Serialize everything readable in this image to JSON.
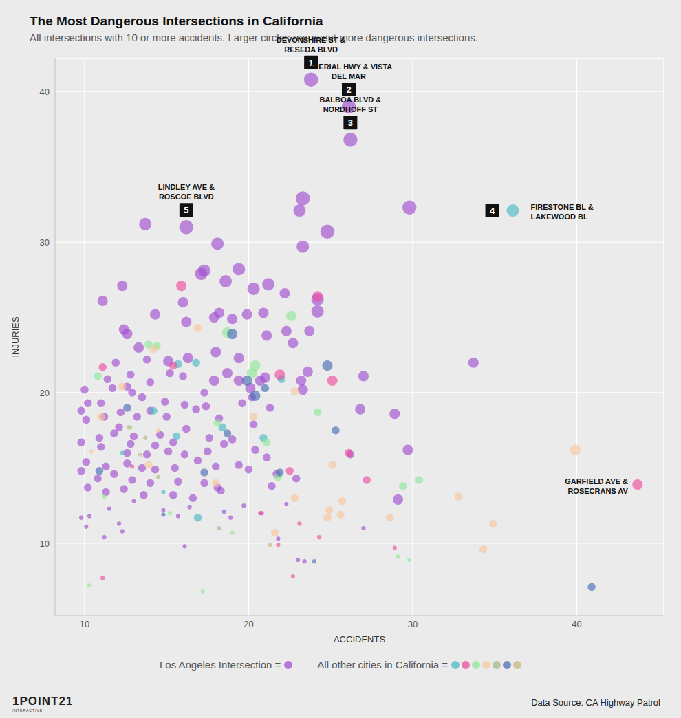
{
  "chart_data": {
    "type": "scatter",
    "title": "The Most Dangerous Intersections in California",
    "subtitle": "All intersections with 10 or more accidents. Larger circles represent more dangerous intersections.",
    "x_label": "ACCIDENTS",
    "y_label": "INJURIES",
    "xlim": [
      8.2,
      45.3
    ],
    "ylim": [
      5.2,
      42.2
    ],
    "xticks": [
      10,
      20,
      30,
      40
    ],
    "yticks": [
      10,
      20,
      30,
      40
    ],
    "grid": true,
    "legend": "bottom",
    "series": [
      {
        "name": "Los Angeles Intersection =",
        "color": "#a24fd0",
        "x": [
          23.8,
          26.1,
          26.2,
          16.2,
          13.7,
          23.3,
          23.1,
          29.8,
          24.8,
          23.3,
          18.1,
          17.3,
          17.1,
          19.4,
          18.6,
          12.3,
          11.1,
          16.0,
          20.3,
          21.2,
          22.2,
          24.2,
          24.2,
          20.9,
          18.2,
          17.9,
          19.0,
          19.9,
          14.3,
          16.2,
          12.4,
          12.6,
          22.3,
          23.7,
          21.1,
          22.7,
          13.3,
          18.0,
          19.4,
          15.1,
          16.3,
          11.9,
          13.8,
          33.7,
          23.6,
          27.0,
          21.0,
          19.4,
          20.7,
          23.2,
          18.7,
          17.9,
          20.1,
          23.3,
          15.2,
          16.0,
          14.0,
          12.8,
          11.4,
          12.6,
          11.7,
          10.0,
          12.9,
          13.5,
          14.9,
          16.1,
          17.4,
          17.3,
          19.6,
          20.2,
          21.3,
          10.2,
          11.0,
          9.8,
          12.2,
          13.2,
          14.0,
          15.0,
          16.8,
          18.2,
          20.3,
          26.8,
          28.9,
          10.1,
          11.2,
          12.1,
          13.0,
          14.6,
          16.2,
          17.6,
          19.0,
          10.9,
          11.8,
          12.8,
          14.3,
          15.4,
          9.8,
          11.0,
          12.6,
          13.8,
          15.1,
          16.1,
          17.5,
          18.5,
          20.4,
          21.1,
          26.2,
          29.7,
          10.1,
          11.3,
          12.6,
          13.5,
          14.3,
          15.5,
          16.9,
          18.0,
          19.4,
          20.0,
          22.9,
          9.8,
          10.8,
          11.8,
          12.9,
          14.0,
          15.7,
          17.3,
          18.1,
          21.7,
          10.2,
          11.3,
          12.4,
          13.6,
          15.4,
          16.6,
          18.3,
          29.1,
          11.5,
          13.0,
          14.8,
          16.4,
          18.5,
          20.8,
          10.3,
          12.1,
          9.8,
          10.1,
          15.7,
          18.9,
          21.8,
          27.0,
          11.2,
          12.3,
          16.1,
          23.0,
          23.4,
          22.3,
          21.4,
          19.7
        ],
        "y": [
          40.8,
          39.0,
          36.8,
          31.0,
          31.2,
          32.9,
          32.1,
          32.3,
          30.7,
          29.7,
          29.9,
          28.1,
          27.9,
          28.2,
          27.4,
          27.1,
          26.1,
          26.0,
          26.9,
          27.2,
          26.6,
          26.2,
          25.4,
          25.3,
          25.3,
          25.0,
          24.9,
          25.2,
          25.2,
          24.7,
          24.2,
          23.9,
          24.1,
          24.1,
          23.8,
          23.3,
          23.0,
          22.7,
          22.3,
          22.1,
          22.3,
          22.0,
          22.2,
          22.0,
          21.4,
          21.1,
          21.0,
          20.8,
          20.8,
          20.8,
          21.3,
          20.8,
          20.3,
          20.2,
          21.3,
          21.1,
          20.7,
          21.2,
          20.9,
          20.4,
          20.3,
          20.2,
          20.0,
          19.7,
          19.4,
          19.2,
          19.1,
          20.0,
          19.3,
          19.7,
          19.0,
          19.3,
          19.3,
          18.8,
          18.7,
          18.4,
          18.8,
          18.4,
          18.9,
          18.3,
          17.9,
          18.9,
          18.6,
          18.2,
          18.4,
          17.7,
          17.1,
          17.2,
          17.6,
          17.0,
          16.9,
          17.0,
          17.3,
          16.6,
          16.5,
          16.7,
          16.7,
          16.4,
          16.0,
          15.9,
          16.1,
          15.9,
          16.1,
          16.6,
          16.2,
          15.7,
          15.9,
          16.2,
          15.4,
          15.1,
          15.3,
          15.0,
          14.9,
          15.0,
          15.5,
          15.1,
          15.2,
          14.9,
          14.3,
          14.8,
          14.3,
          14.6,
          14.2,
          14.0,
          14.1,
          14.0,
          13.7,
          14.6,
          13.7,
          13.4,
          13.6,
          13.2,
          13.2,
          13.0,
          13.5,
          12.9,
          12.3,
          12.8,
          12.2,
          12.4,
          12.1,
          12.0,
          11.8,
          11.3,
          11.7,
          11.1,
          11.8,
          11.7,
          10.3,
          11.0,
          10.4,
          10.8,
          9.8,
          8.9,
          8.8,
          12.6,
          13.8,
          12.5
        ],
        "size": [
          5,
          5,
          5,
          5,
          4,
          5,
          4,
          5,
          5,
          4,
          4,
          4,
          4,
          4,
          4,
          3,
          3,
          3,
          4,
          4,
          3,
          4,
          4,
          3,
          3,
          3,
          3,
          3,
          3,
          3,
          3,
          3,
          3,
          3,
          3,
          3,
          3,
          3,
          3,
          3,
          3,
          2,
          2,
          3,
          3,
          3,
          3,
          3,
          3,
          3,
          3,
          3,
          3,
          3,
          2,
          2,
          2,
          2,
          2,
          2,
          2,
          2,
          2,
          2,
          2,
          2,
          2,
          2,
          2,
          2,
          2,
          2,
          2,
          2,
          2,
          2,
          2,
          2,
          2,
          2,
          2,
          3,
          3,
          2,
          2,
          2,
          2,
          2,
          2,
          2,
          2,
          2,
          2,
          2,
          2,
          2,
          2,
          2,
          2,
          2,
          2,
          2,
          2,
          2,
          2,
          2,
          2,
          3,
          2,
          2,
          2,
          2,
          2,
          2,
          2,
          2,
          2,
          2,
          2,
          2,
          2,
          2,
          2,
          2,
          2,
          2,
          2,
          2,
          2,
          2,
          2,
          2,
          2,
          2,
          2,
          3,
          1,
          1,
          1,
          1,
          1,
          1,
          1,
          1,
          1,
          1,
          1,
          1,
          1,
          1,
          1,
          1,
          1,
          1,
          1,
          1,
          2,
          1
        ]
      },
      {
        "name": "All other cities in California =",
        "x": [
          36.1,
          16.8,
          22.0,
          15.7,
          18.4,
          16.9,
          14.2,
          15.6,
          12.3,
          14.8,
          20.9,
          43.7,
          15.9,
          24.2,
          25.1,
          21.9,
          27.2,
          22.5,
          11.1,
          11.1,
          22.7,
          23.1,
          24.3,
          20.7,
          26.1,
          21.8,
          12.9,
          15.4,
          28.9,
          18.7,
          20.2,
          20.4,
          14.4,
          13.9,
          22.6,
          24.2,
          21.8,
          29.4,
          30.4,
          17.2,
          10.3,
          10.8,
          18.1,
          12.8,
          11.2,
          19.0,
          29.1,
          29.8,
          21.1,
          15.2,
          39.9,
          34.9,
          34.3,
          32.8,
          28.6,
          25.7,
          25.6,
          24.9,
          24.8,
          25.1,
          22.8,
          21.6,
          22.8,
          16.9,
          14.2,
          12.3,
          11.0,
          10.4,
          13.9,
          18.0,
          20.3,
          14.5,
          13.7,
          18.2,
          14.5,
          40.9,
          19.0,
          24.8,
          19.9,
          20.4,
          21.0,
          25.3,
          18.7,
          12.6,
          10.9,
          21.9,
          24.0,
          14.8,
          17.3,
          12.7,
          21.3,
          13.4
        ],
        "y": [
          32.1,
          22.0,
          20.9,
          21.9,
          17.7,
          11.7,
          18.8,
          17.1,
          16.0,
          13.4,
          17.0,
          13.9,
          27.1,
          26.4,
          20.8,
          21.2,
          14.2,
          14.8,
          21.7,
          7.7,
          7.8,
          11.3,
          10.4,
          12.0,
          16.0,
          9.9,
          15.1,
          21.8,
          9.7,
          24.0,
          21.3,
          21.8,
          23.1,
          23.2,
          25.1,
          18.7,
          14.4,
          13.8,
          14.2,
          6.8,
          7.2,
          21.1,
          18.0,
          17.7,
          13.1,
          10.7,
          9.1,
          8.9,
          16.7,
          12.0,
          16.2,
          11.3,
          9.6,
          13.1,
          11.7,
          12.8,
          11.9,
          12.2,
          11.7,
          15.2,
          20.1,
          10.7,
          13.0,
          24.3,
          22.9,
          20.4,
          18.4,
          16.1,
          15.2,
          14.0,
          18.4,
          17.5,
          17.0,
          11.0,
          14.4,
          7.1,
          23.9,
          21.8,
          20.8,
          19.8,
          20.3,
          17.5,
          17.3,
          19.0,
          14.8,
          14.7,
          8.8,
          11.9,
          14.7,
          17.7,
          9.9,
          15.9
        ],
        "size": [
          4,
          2,
          2,
          2,
          2,
          2,
          2,
          2,
          1,
          1,
          2,
          3,
          3,
          3,
          3,
          3,
          2,
          2,
          2,
          1,
          1,
          1,
          1,
          1,
          2,
          1,
          1,
          2,
          1,
          3,
          3,
          3,
          2,
          2,
          3,
          2,
          2,
          2,
          2,
          1,
          1,
          2,
          2,
          1,
          1,
          1,
          1,
          1,
          2,
          1,
          3,
          2,
          2,
          2,
          2,
          2,
          2,
          2,
          2,
          2,
          2,
          2,
          2,
          2,
          2,
          2,
          2,
          1,
          2,
          2,
          2,
          1,
          1,
          1,
          1,
          2,
          3,
          3,
          3,
          3,
          2,
          2,
          2,
          2,
          2,
          2,
          1,
          1,
          2,
          1,
          1,
          1
        ],
        "colors": [
          "#4db8c4",
          "#4db8c4",
          "#4db8c4",
          "#4db8c4",
          "#4db8c4",
          "#4db8c4",
          "#4db8c4",
          "#4db8c4",
          "#4db8c4",
          "#4db8c4",
          "#4db8c4",
          "#ee4d9f",
          "#ee4d9f",
          "#ee4d9f",
          "#ee4d9f",
          "#ee4d9f",
          "#ee4d9f",
          "#ee4d9f",
          "#ee4d9f",
          "#ee4d9f",
          "#ee4d9f",
          "#ee4d9f",
          "#ee4d9f",
          "#ee4d9f",
          "#ee4d9f",
          "#ee4d9f",
          "#ee4d9f",
          "#ee4d9f",
          "#ee4d9f",
          "#8fe89a",
          "#8fe89a",
          "#8fe89a",
          "#8fe89a",
          "#8fe89a",
          "#8fe89a",
          "#8fe89a",
          "#8fe89a",
          "#8fe89a",
          "#8fe89a",
          "#8fe89a",
          "#8fe89a",
          "#8fe89a",
          "#8fe89a",
          "#8fe89a",
          "#8fe89a",
          "#8fe89a",
          "#8fe89a",
          "#8fe89a",
          "#8fe89a",
          "#8fe89a",
          "#f7c8a0",
          "#f7c8a0",
          "#f7c8a0",
          "#f7c8a0",
          "#f7c8a0",
          "#f7c8a0",
          "#f7c8a0",
          "#f7c8a0",
          "#f7c8a0",
          "#f7c8a0",
          "#f7c8a0",
          "#f7c8a0",
          "#f7c8a0",
          "#f7c8a0",
          "#f7c8a0",
          "#f7c8a0",
          "#f7c8a0",
          "#f7c8a0",
          "#f7c8a0",
          "#f7c8a0",
          "#f7c8a0",
          "#f7c8a0",
          "#aab98b",
          "#aab98b",
          "#aab98b",
          "#4a6fb5",
          "#4a6fb5",
          "#4a6fb5",
          "#4a6fb5",
          "#4a6fb5",
          "#4a6fb5",
          "#4a6fb5",
          "#4a6fb5",
          "#4a6fb5",
          "#4a6fb5",
          "#4a6fb5",
          "#4a6fb5",
          "#4a6fb5",
          "#4a6fb5",
          "#c9b484",
          "#c9b484",
          "#c9b484"
        ]
      }
    ],
    "annotations": [
      {
        "rank": 1,
        "text": [
          "DEVONSHIRE ST &",
          "RESEDA BLVD"
        ],
        "x": 23.8,
        "y": 40.8
      },
      {
        "rank": 2,
        "text": [
          "IMPERIAL HWY & VISTA",
          "DEL MAR"
        ],
        "x": 26.1,
        "y": 39.0
      },
      {
        "rank": 3,
        "text": [
          "BALBOA BLVD &",
          "NORDHOFF ST"
        ],
        "x": 26.2,
        "y": 36.8
      },
      {
        "rank": 4,
        "text": [
          "FIRESTONE BL &",
          "LAKEWOOD BL"
        ],
        "x": 36.1,
        "y": 32.1
      },
      {
        "rank": 5,
        "text": [
          "LINDLEY AVE &",
          "ROSCOE BLVD"
        ],
        "x": 16.2,
        "y": 31.0
      },
      {
        "text": [
          "GARFIELD AVE &",
          "ROSECRANS AV"
        ],
        "x": 43.7,
        "y": 13.9
      }
    ],
    "source": "Data Source: CA Highway Patrol",
    "logo": "1POINT21",
    "logo_subtitle": "INTERACTIVE"
  }
}
